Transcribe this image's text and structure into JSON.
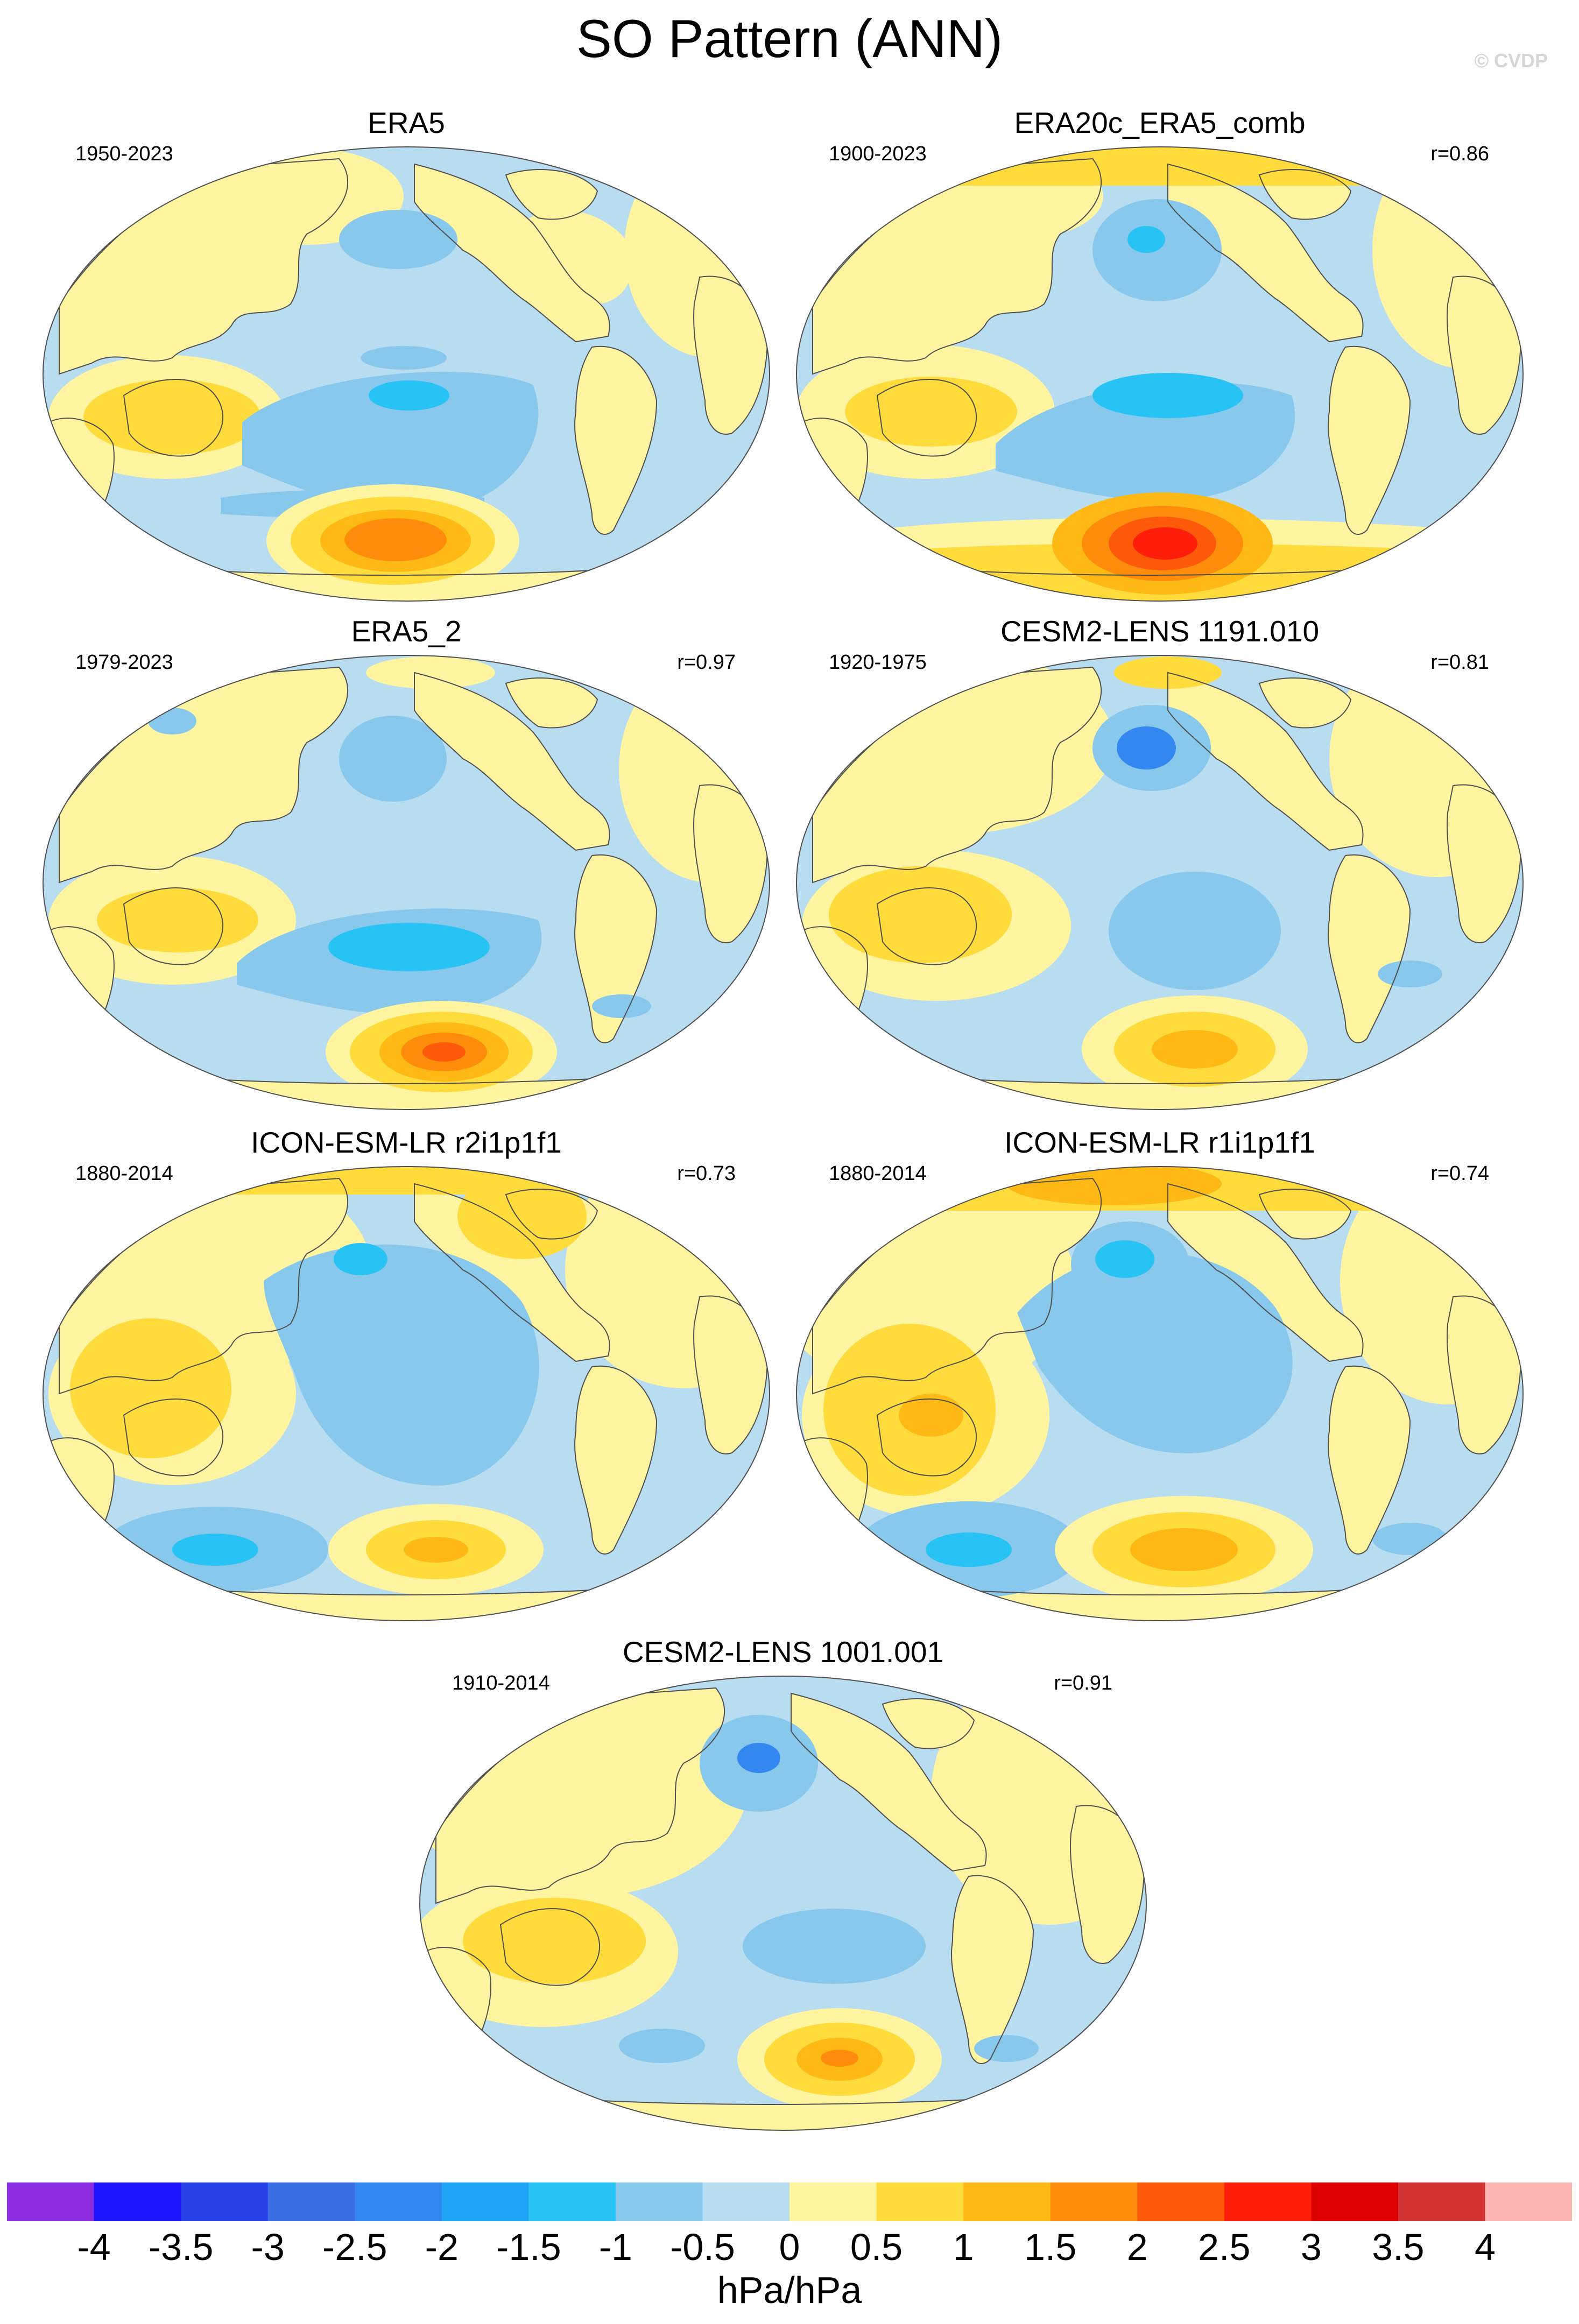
{
  "title": "SO Pattern (ANN)",
  "watermark": "© CVDP",
  "units": "hPa/hPa",
  "colors": {
    "ocean_base": "#b8dcf0",
    "land_base": "#fff5a0",
    "coast": "#505050"
  },
  "colorbar": {
    "ticks": [
      "-4",
      "-3.5",
      "-3",
      "-2.5",
      "-2",
      "-1.5",
      "-1",
      "-0.5",
      "0",
      "0.5",
      "1",
      "1.5",
      "2",
      "2.5",
      "3",
      "3.5",
      "4"
    ],
    "colors": [
      "#8b2be2",
      "#1e14ff",
      "#2841e6",
      "#3c6ee6",
      "#3287f0",
      "#1ea5f5",
      "#28c3f5",
      "#87c8ec",
      "#b8dcf0",
      "#fff5a0",
      "#ffdc3c",
      "#ffb914",
      "#ff8c0a",
      "#ff5a0a",
      "#ff1e0a",
      "#dc0000",
      "#d23232",
      "#ffb4b4"
    ]
  },
  "panels": [
    {
      "id": "era5",
      "title": "ERA5",
      "years": "1950-2023",
      "corr": ""
    },
    {
      "id": "era20c",
      "title": "ERA20c_ERA5_comb",
      "years": "1900-2023",
      "corr": "r=0.86"
    },
    {
      "id": "era5_2",
      "title": "ERA5_2",
      "years": "1979-2023",
      "corr": "r=0.97"
    },
    {
      "id": "cesm1191",
      "title": "CESM2-LENS 1191.010",
      "years": "1920-1975",
      "corr": "r=0.81"
    },
    {
      "id": "icon_r2",
      "title": "ICON-ESM-LR r2i1p1f1",
      "years": "1880-2014",
      "corr": "r=0.73"
    },
    {
      "id": "icon_r1",
      "title": "ICON-ESM-LR r1i1p1f1",
      "years": "1880-2014",
      "corr": "r=0.74"
    },
    {
      "id": "cesm1001",
      "title": "CESM2-LENS 1001.001",
      "years": "1910-2014",
      "corr": "r=0.91"
    }
  ]
}
